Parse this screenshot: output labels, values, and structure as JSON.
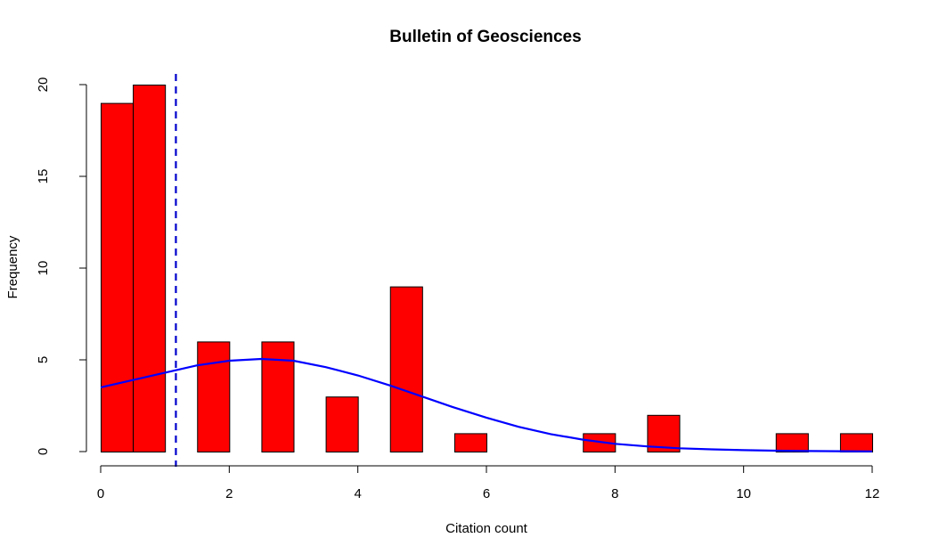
{
  "chart_data": {
    "type": "bar",
    "title": "Bulletin of Geosciences",
    "xlabel": "Citation count",
    "ylabel": "Frequency",
    "xlim": [
      0,
      12
    ],
    "ylim": [
      0,
      20
    ],
    "x_ticks": [
      "0",
      "2",
      "4",
      "6",
      "8",
      "10",
      "12"
    ],
    "y_ticks": [
      "0",
      "5",
      "10",
      "15",
      "20"
    ],
    "bin_width": 0.5,
    "bars": [
      {
        "x0": 0.0,
        "x1": 0.5,
        "value": 19
      },
      {
        "x0": 0.5,
        "x1": 1.0,
        "value": 20
      },
      {
        "x0": 1.5,
        "x1": 2.0,
        "value": 6
      },
      {
        "x0": 2.5,
        "x1": 3.0,
        "value": 6
      },
      {
        "x0": 3.5,
        "x1": 4.0,
        "value": 3
      },
      {
        "x0": 4.5,
        "x1": 5.0,
        "value": 9
      },
      {
        "x0": 5.5,
        "x1": 6.0,
        "value": 1
      },
      {
        "x0": 7.5,
        "x1": 8.0,
        "value": 1
      },
      {
        "x0": 8.5,
        "x1": 9.0,
        "value": 2
      },
      {
        "x0": 10.5,
        "x1": 11.0,
        "value": 1
      },
      {
        "x0": 11.5,
        "x1": 12.0,
        "value": 1
      }
    ],
    "mean_line_x": 1.17,
    "curve": {
      "x": [
        0,
        0.5,
        1,
        1.5,
        2,
        2.5,
        3,
        3.5,
        4,
        4.5,
        5,
        5.5,
        6,
        6.5,
        7,
        7.5,
        8,
        8.5,
        9,
        9.5,
        10,
        10.5,
        11,
        11.5,
        12
      ],
      "y": [
        3.5,
        3.9,
        4.3,
        4.7,
        4.95,
        5.05,
        4.95,
        4.6,
        4.15,
        3.6,
        3.0,
        2.4,
        1.85,
        1.35,
        0.95,
        0.65,
        0.42,
        0.28,
        0.18,
        0.12,
        0.08,
        0.05,
        0.03,
        0.02,
        0.01
      ]
    },
    "colors": {
      "bar_fill": "#ff0000",
      "bar_stroke": "#000000",
      "curve": "#0000ff",
      "mean_line": "#0000cc"
    },
    "grid": false,
    "legend": "none"
  }
}
